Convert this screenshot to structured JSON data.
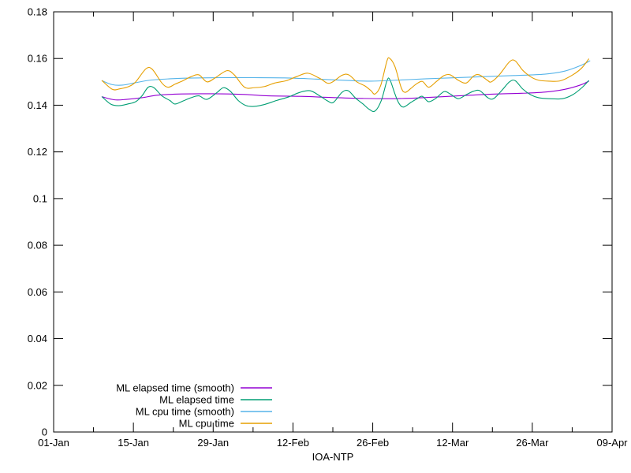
{
  "page": {
    "background": "#ffffff"
  },
  "chart_data": {
    "type": "line",
    "title": "",
    "xlabel": "IOA-NTP",
    "ylabel": "",
    "x_axis": "dates from 01-Jan to 09-Apr (x stored as days since 01-Jan)",
    "xlim_days": [
      0,
      98
    ],
    "ylim": [
      0,
      0.18
    ],
    "grid": false,
    "legend_position": "inside-bottom-left",
    "axis_color": "#000000",
    "text_color": "#000000",
    "x_major_ticks": [
      {
        "day": 0,
        "label": "01-Jan"
      },
      {
        "day": 14,
        "label": "15-Jan"
      },
      {
        "day": 28,
        "label": "29-Jan"
      },
      {
        "day": 42,
        "label": "12-Feb"
      },
      {
        "day": 56,
        "label": "26-Feb"
      },
      {
        "day": 70,
        "label": "12-Mar"
      },
      {
        "day": 84,
        "label": "26-Mar"
      },
      {
        "day": 98,
        "label": "09-Apr"
      }
    ],
    "x_minor_tick_days": [
      7,
      21,
      35,
      49,
      63,
      77,
      91
    ],
    "y_major_ticks": [
      {
        "value": 0,
        "label": "0"
      },
      {
        "value": 0.02,
        "label": "0.02"
      },
      {
        "value": 0.04,
        "label": "0.04"
      },
      {
        "value": 0.06,
        "label": "0.06"
      },
      {
        "value": 0.08,
        "label": "0.08"
      },
      {
        "value": 0.1,
        "label": "0.1"
      },
      {
        "value": 0.12,
        "label": "0.12"
      },
      {
        "value": 0.14,
        "label": "0.14"
      },
      {
        "value": 0.16,
        "label": "0.16"
      },
      {
        "value": 0.18,
        "label": "0.18"
      }
    ],
    "series": [
      {
        "name": "ML elapsed time (smooth)",
        "color": "#9400d3",
        "points": [
          [
            8.5,
            0.1436
          ],
          [
            10.7,
            0.1423
          ],
          [
            12.8,
            0.1425
          ],
          [
            15.5,
            0.1432
          ],
          [
            18.3,
            0.1443
          ],
          [
            22.5,
            0.1448
          ],
          [
            28.0,
            0.1449
          ],
          [
            33.5,
            0.1446
          ],
          [
            37.7,
            0.144
          ],
          [
            43.2,
            0.1438
          ],
          [
            48.8,
            0.1433
          ],
          [
            54.3,
            0.1429
          ],
          [
            59.9,
            0.1428
          ],
          [
            65.4,
            0.1433
          ],
          [
            71.0,
            0.144
          ],
          [
            76.5,
            0.1447
          ],
          [
            82.1,
            0.1451
          ],
          [
            86.2,
            0.1456
          ],
          [
            89.7,
            0.1468
          ],
          [
            92.5,
            0.1487
          ],
          [
            93.9,
            0.1503
          ]
        ]
      },
      {
        "name": "ML elapsed time",
        "color": "#009e73",
        "points": [
          [
            8.5,
            0.1436
          ],
          [
            10.0,
            0.1405
          ],
          [
            11.4,
            0.1398
          ],
          [
            13.0,
            0.1405
          ],
          [
            14.4,
            0.1415
          ],
          [
            15.5,
            0.144
          ],
          [
            16.6,
            0.1477
          ],
          [
            17.6,
            0.1475
          ],
          [
            19.0,
            0.144
          ],
          [
            20.4,
            0.142
          ],
          [
            21.3,
            0.1405
          ],
          [
            22.7,
            0.1418
          ],
          [
            24.1,
            0.1432
          ],
          [
            25.5,
            0.144
          ],
          [
            26.9,
            0.1425
          ],
          [
            28.7,
            0.1455
          ],
          [
            29.8,
            0.1475
          ],
          [
            31.0,
            0.146
          ],
          [
            32.4,
            0.142
          ],
          [
            33.8,
            0.1398
          ],
          [
            35.2,
            0.1395
          ],
          [
            37.0,
            0.1403
          ],
          [
            39.1,
            0.142
          ],
          [
            41.2,
            0.1435
          ],
          [
            43.2,
            0.1455
          ],
          [
            45.0,
            0.1462
          ],
          [
            46.7,
            0.144
          ],
          [
            48.1,
            0.1418
          ],
          [
            49.1,
            0.1412
          ],
          [
            50.6,
            0.1455
          ],
          [
            51.7,
            0.1462
          ],
          [
            53.0,
            0.143
          ],
          [
            54.3,
            0.1405
          ],
          [
            55.4,
            0.1382
          ],
          [
            56.4,
            0.1375
          ],
          [
            57.5,
            0.142
          ],
          [
            58.5,
            0.1505
          ],
          [
            59.0,
            0.151
          ],
          [
            59.9,
            0.1448
          ],
          [
            60.6,
            0.1408
          ],
          [
            61.4,
            0.1392
          ],
          [
            62.7,
            0.1412
          ],
          [
            63.8,
            0.1428
          ],
          [
            64.7,
            0.1438
          ],
          [
            65.8,
            0.1415
          ],
          [
            67.1,
            0.143
          ],
          [
            68.5,
            0.1458
          ],
          [
            69.6,
            0.1448
          ],
          [
            71.0,
            0.1428
          ],
          [
            72.4,
            0.1445
          ],
          [
            73.7,
            0.146
          ],
          [
            74.8,
            0.1462
          ],
          [
            76.2,
            0.1432
          ],
          [
            77.2,
            0.1428
          ],
          [
            78.6,
            0.1462
          ],
          [
            80.0,
            0.15
          ],
          [
            81.0,
            0.1505
          ],
          [
            82.3,
            0.147
          ],
          [
            83.7,
            0.1445
          ],
          [
            85.1,
            0.1432
          ],
          [
            86.9,
            0.1428
          ],
          [
            89.3,
            0.1428
          ],
          [
            91.1,
            0.1445
          ],
          [
            92.7,
            0.1475
          ],
          [
            93.9,
            0.1505
          ]
        ]
      },
      {
        "name": "ML cpu time (smooth)",
        "color": "#56b4e9",
        "points": [
          [
            8.5,
            0.1505
          ],
          [
            10.3,
            0.1488
          ],
          [
            12.1,
            0.1486
          ],
          [
            14.1,
            0.1495
          ],
          [
            16.9,
            0.1507
          ],
          [
            20.4,
            0.1513
          ],
          [
            23.8,
            0.1516
          ],
          [
            29.4,
            0.1518
          ],
          [
            34.9,
            0.1518
          ],
          [
            40.5,
            0.1517
          ],
          [
            46.0,
            0.1512
          ],
          [
            51.6,
            0.1506
          ],
          [
            55.7,
            0.1503
          ],
          [
            59.9,
            0.1507
          ],
          [
            65.4,
            0.1513
          ],
          [
            69.6,
            0.1517
          ],
          [
            75.1,
            0.1522
          ],
          [
            80.7,
            0.1527
          ],
          [
            86.2,
            0.1533
          ],
          [
            89.7,
            0.1546
          ],
          [
            92.5,
            0.157
          ],
          [
            94.1,
            0.159
          ]
        ]
      },
      {
        "name": "ML cpu time",
        "color": "#e69f00",
        "points": [
          [
            8.5,
            0.1505
          ],
          [
            10.3,
            0.1468
          ],
          [
            11.6,
            0.147
          ],
          [
            13.2,
            0.148
          ],
          [
            14.4,
            0.15
          ],
          [
            16.2,
            0.1556
          ],
          [
            17.3,
            0.1554
          ],
          [
            19.0,
            0.1495
          ],
          [
            20.1,
            0.1477
          ],
          [
            21.3,
            0.149
          ],
          [
            22.7,
            0.1505
          ],
          [
            24.1,
            0.1522
          ],
          [
            25.5,
            0.153
          ],
          [
            26.9,
            0.15
          ],
          [
            28.4,
            0.1518
          ],
          [
            30.4,
            0.1548
          ],
          [
            31.7,
            0.153
          ],
          [
            33.5,
            0.1477
          ],
          [
            35.2,
            0.1475
          ],
          [
            37.0,
            0.148
          ],
          [
            38.8,
            0.1495
          ],
          [
            40.8,
            0.1505
          ],
          [
            42.6,
            0.1522
          ],
          [
            44.6,
            0.1537
          ],
          [
            46.7,
            0.1515
          ],
          [
            48.4,
            0.1494
          ],
          [
            50.6,
            0.1528
          ],
          [
            51.8,
            0.153
          ],
          [
            53.2,
            0.15
          ],
          [
            54.6,
            0.1483
          ],
          [
            55.7,
            0.1462
          ],
          [
            56.4,
            0.1448
          ],
          [
            57.4,
            0.1485
          ],
          [
            58.5,
            0.159
          ],
          [
            59.0,
            0.16
          ],
          [
            59.9,
            0.1565
          ],
          [
            61.0,
            0.1475
          ],
          [
            61.7,
            0.1455
          ],
          [
            62.7,
            0.1472
          ],
          [
            63.6,
            0.149
          ],
          [
            64.7,
            0.1502
          ],
          [
            65.8,
            0.1477
          ],
          [
            67.1,
            0.15
          ],
          [
            68.5,
            0.1527
          ],
          [
            69.6,
            0.153
          ],
          [
            71.0,
            0.1507
          ],
          [
            72.4,
            0.1495
          ],
          [
            73.7,
            0.1525
          ],
          [
            74.7,
            0.153
          ],
          [
            76.1,
            0.1507
          ],
          [
            76.8,
            0.15
          ],
          [
            78.2,
            0.153
          ],
          [
            80.0,
            0.1586
          ],
          [
            81.0,
            0.159
          ],
          [
            82.3,
            0.155
          ],
          [
            83.7,
            0.1522
          ],
          [
            85.1,
            0.1507
          ],
          [
            86.9,
            0.1503
          ],
          [
            89.0,
            0.1505
          ],
          [
            91.1,
            0.153
          ],
          [
            92.7,
            0.156
          ],
          [
            93.9,
            0.1598
          ]
        ]
      }
    ]
  }
}
